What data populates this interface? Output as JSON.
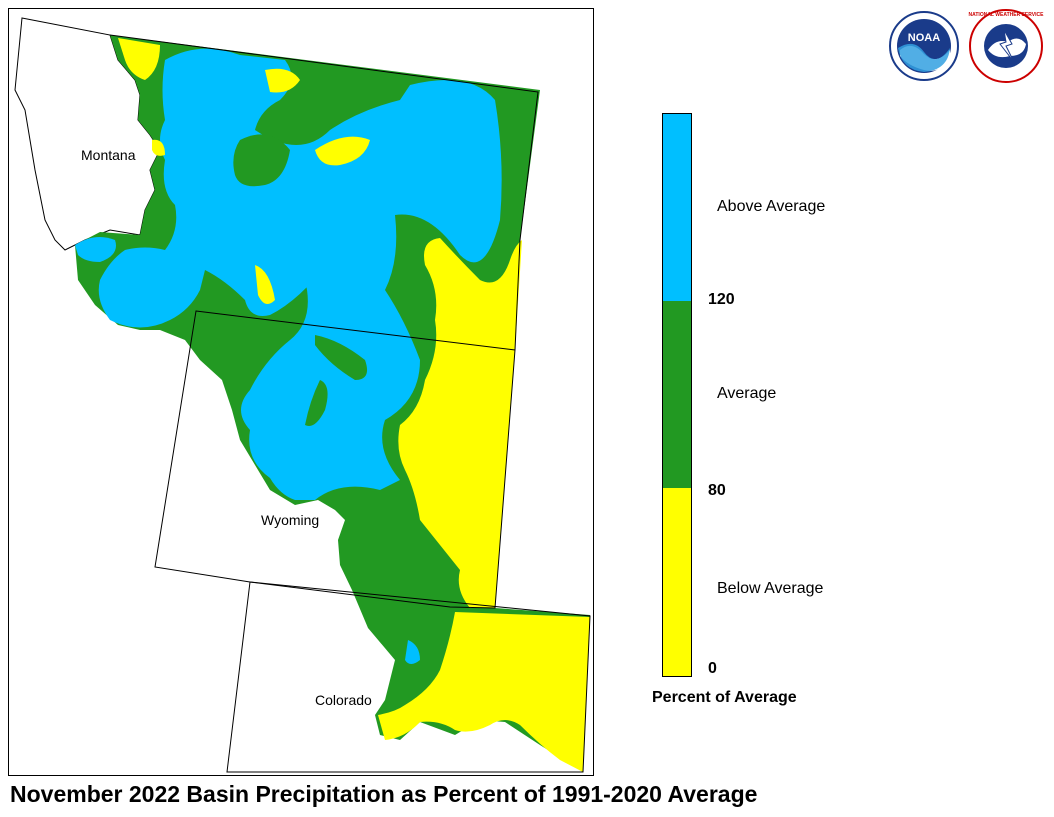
{
  "title": "November 2022 Basin Precipitation as Percent of 1991-2020 Average",
  "states": [
    {
      "name": "Montana"
    },
    {
      "name": "Wyoming"
    },
    {
      "name": "Colorado"
    }
  ],
  "legend": {
    "caption": "Percent of Average",
    "categories": [
      {
        "label": "Above Average",
        "color": "#00BFFF"
      },
      {
        "label": "Average",
        "color": "#229922"
      },
      {
        "label": "Below Average",
        "color": "#FFFF00"
      }
    ],
    "ticks": [
      "120",
      "80",
      "0"
    ]
  },
  "logos": {
    "noaa_text": "NOAA",
    "nws_text": "NATIONAL WEATHER SERVICE"
  }
}
